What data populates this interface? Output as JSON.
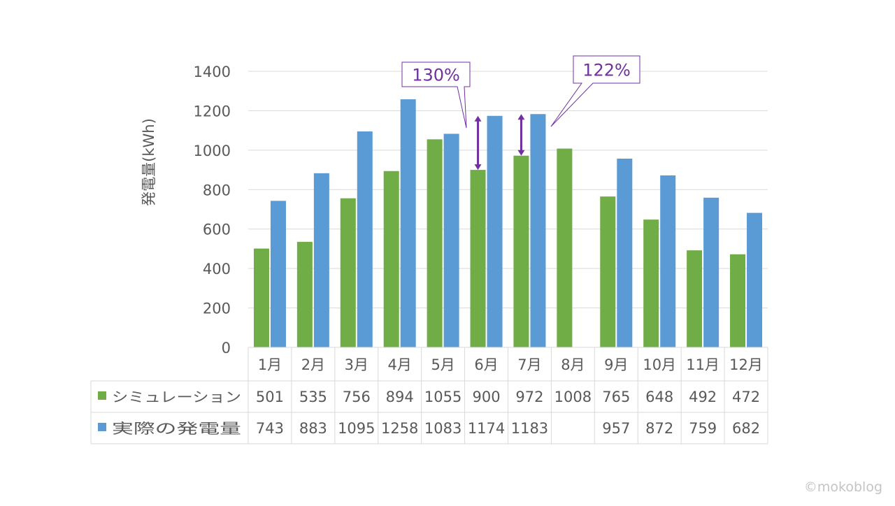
{
  "chart_data": {
    "type": "bar",
    "title": "",
    "xlabel": "",
    "ylabel": "発電量(kWh)",
    "ylim": [
      0,
      1400
    ],
    "yticks": [
      0,
      200,
      400,
      600,
      800,
      1000,
      1200,
      1400
    ],
    "grid": true,
    "categories": [
      "1月",
      "2月",
      "3月",
      "4月",
      "5月",
      "6月",
      "7月",
      "8月",
      "9月",
      "10月",
      "11月",
      "12月"
    ],
    "series": [
      {
        "name": "シミュレーション",
        "color": "#70ad47",
        "values": [
          501,
          535,
          756,
          894,
          1055,
          900,
          972,
          1008,
          765,
          648,
          492,
          472
        ]
      },
      {
        "name": "実際の発電量",
        "color": "#5b9bd5",
        "values": [
          743,
          883,
          1095,
          1258,
          1083,
          1174,
          1183,
          null,
          957,
          872,
          759,
          682
        ]
      }
    ],
    "table": {
      "rows": [
        {
          "legend": "シミュレーション",
          "values": [
            "501",
            "535",
            "756",
            "894",
            "1055",
            "900",
            "972",
            "1008",
            "765",
            "648",
            "492",
            "472"
          ]
        },
        {
          "legend": "実際の発電量",
          "values": [
            "743",
            "883",
            "1095",
            "1258",
            "1083",
            "1174",
            "1183",
            "",
            "957",
            "872",
            "759",
            "682"
          ]
        }
      ]
    },
    "annotations": [
      {
        "text": "130%",
        "category": "6月",
        "from": 900,
        "to": 1174,
        "color": "#7030a0"
      },
      {
        "text": "122%",
        "category": "7月",
        "from": 972,
        "to": 1183,
        "color": "#7030a0"
      }
    ]
  },
  "watermark": "©mokoblog"
}
